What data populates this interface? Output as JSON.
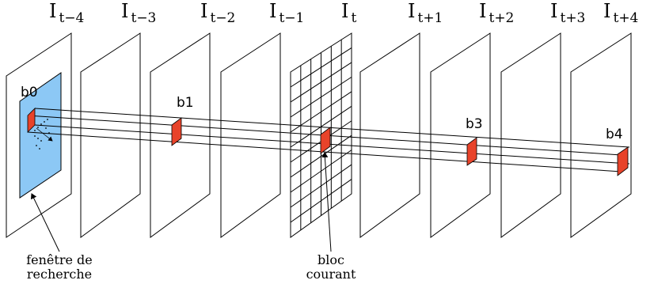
{
  "frames": [
    {
      "main": "I",
      "sub": "t−4"
    },
    {
      "main": "I",
      "sub": "t−3"
    },
    {
      "main": "I",
      "sub": "t−2"
    },
    {
      "main": "I",
      "sub": "t−1"
    },
    {
      "main": "I",
      "sub": "t"
    },
    {
      "main": "I",
      "sub": "t+1"
    },
    {
      "main": "I",
      "sub": "t+2"
    },
    {
      "main": "I",
      "sub": "t+3"
    },
    {
      "main": "I",
      "sub": "t+4"
    }
  ],
  "blocks": {
    "b0": "b0",
    "b1": "b1",
    "b3": "b3",
    "b4": "b4"
  },
  "annotations": {
    "search_window_line1": "fenêtre de",
    "search_window_line2": "recherche",
    "current_block_line1": "bloc",
    "current_block_line2": "courant"
  },
  "colors": {
    "search_window": "#8cc8f5",
    "block": "#e8432a"
  }
}
